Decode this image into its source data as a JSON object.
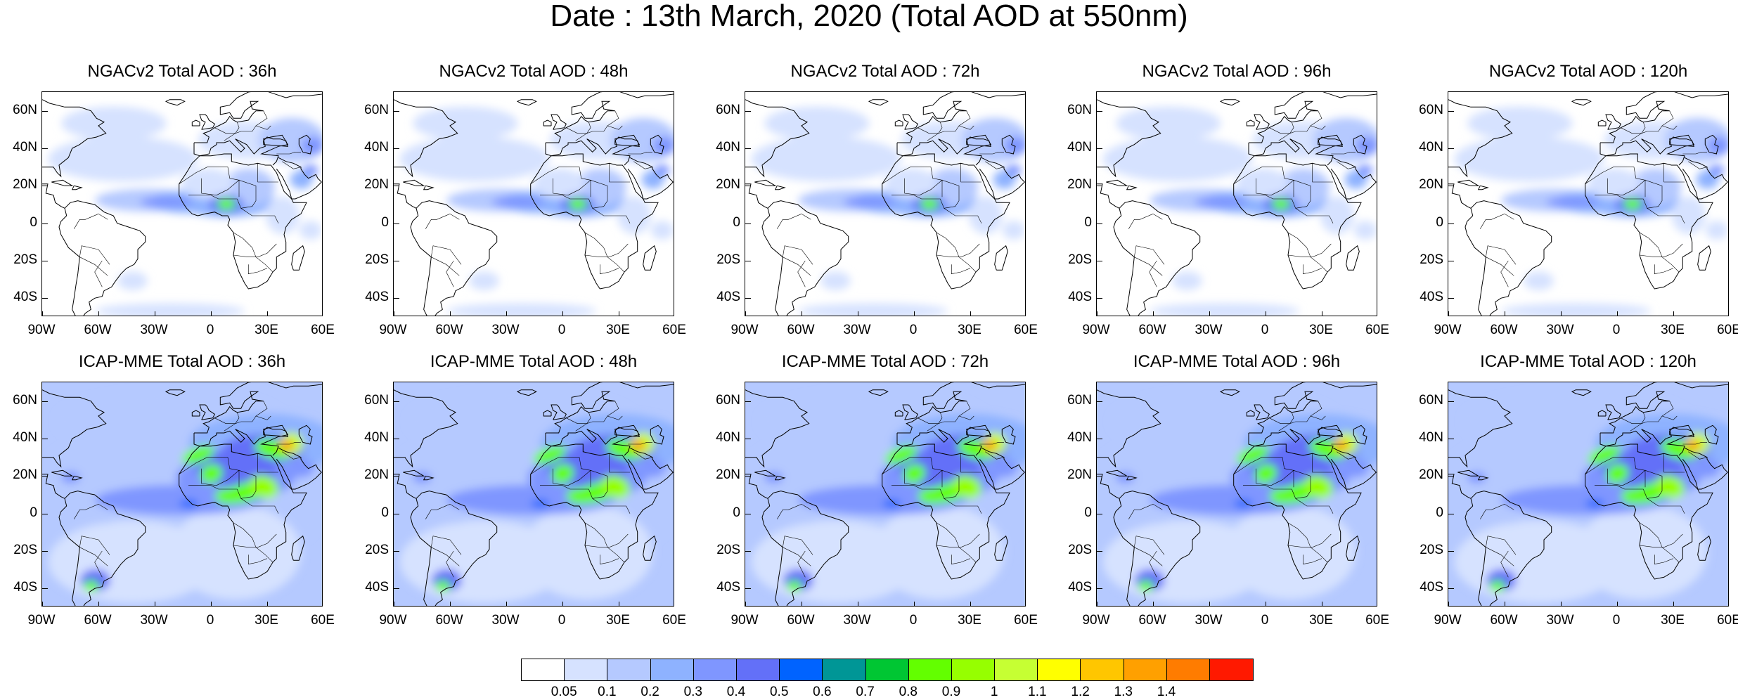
{
  "title": "Date : 13th March, 2020 (Total AOD at 550nm)",
  "panels": [
    {
      "title": "NGACv2 Total AOD : 36h",
      "model": "ngac"
    },
    {
      "title": "NGACv2 Total AOD : 48h",
      "model": "ngac"
    },
    {
      "title": "NGACv2 Total AOD : 72h",
      "model": "ngac"
    },
    {
      "title": "NGACv2 Total AOD : 96h",
      "model": "ngac"
    },
    {
      "title": "NGACv2 Total AOD : 120h",
      "model": "ngac"
    },
    {
      "title": "ICAP-MME Total AOD : 36h",
      "model": "icap"
    },
    {
      "title": "ICAP-MME Total AOD : 48h",
      "model": "icap"
    },
    {
      "title": "ICAP-MME Total AOD : 72h",
      "model": "icap"
    },
    {
      "title": "ICAP-MME Total AOD : 96h",
      "model": "icap"
    },
    {
      "title": "ICAP-MME Total AOD : 120h",
      "model": "icap"
    }
  ],
  "lat_labels": [
    "60N",
    "40N",
    "20N",
    "0",
    "20S",
    "40S"
  ],
  "lon_labels": [
    "90W",
    "60W",
    "30W",
    "0",
    "30E",
    "60E"
  ],
  "map_extent": {
    "lon": [
      -90,
      60
    ],
    "lat": [
      -50,
      70
    ]
  },
  "colorbar": {
    "labels": [
      "0.05",
      "0.1",
      "0.2",
      "0.3",
      "0.4",
      "0.5",
      "0.6",
      "0.7",
      "0.8",
      "0.9",
      "1",
      "1.1",
      "1.2",
      "1.3",
      "1.4"
    ],
    "colors": [
      "#ffffff",
      "#d6e2ff",
      "#b5c9ff",
      "#8eb2ff",
      "#7f96ff",
      "#6370f8",
      "#0063ff",
      "#009696",
      "#00c633",
      "#63ff00",
      "#96ff00",
      "#c6ff33",
      "#ffff00",
      "#ffc600",
      "#ffa000",
      "#ff7c00",
      "#ff1900"
    ]
  }
}
